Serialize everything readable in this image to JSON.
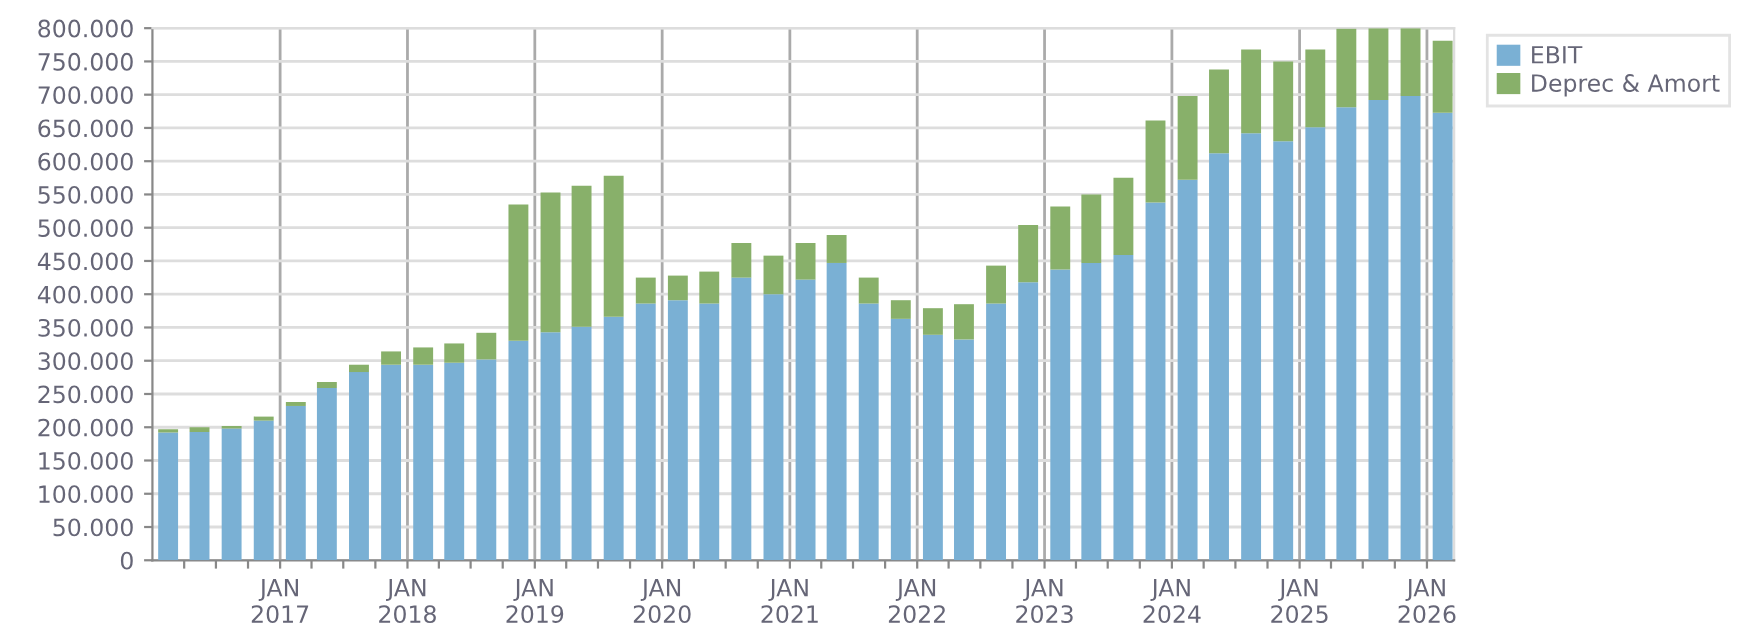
{
  "chart_data": {
    "type": "bar",
    "stacked": true,
    "x": [
      "2016-02-15",
      "2016-05-15",
      "2016-08-15",
      "2016-11-15",
      "2017-02-15",
      "2017-05-15",
      "2017-08-15",
      "2017-11-15",
      "2018-02-15",
      "2018-05-15",
      "2018-08-15",
      "2018-11-15",
      "2019-02-15",
      "2019-05-15",
      "2019-08-15",
      "2019-11-15",
      "2020-02-15",
      "2020-05-15",
      "2020-08-15",
      "2020-11-15",
      "2021-02-15",
      "2021-05-15",
      "2021-08-15",
      "2021-11-15",
      "2022-02-15",
      "2022-05-15",
      "2022-08-15",
      "2022-11-15",
      "2023-02-15",
      "2023-05-15",
      "2023-08-15",
      "2023-11-15",
      "2024-02-15",
      "2024-05-15",
      "2024-08-15",
      "2024-11-15",
      "2025-02-15",
      "2025-05-15",
      "2025-08-15",
      "2025-11-15",
      "2026-02-15"
    ],
    "series": [
      {
        "name": "EBIT",
        "color": "#7ab0d4",
        "values": [
          192000,
          193000,
          198000,
          210000,
          232000,
          259000,
          283000,
          294000,
          294000,
          297000,
          302000,
          330000,
          343000,
          351000,
          366000,
          386000,
          391000,
          386000,
          425000,
          400000,
          422000,
          447000,
          386000,
          363000,
          339000,
          332000,
          386000,
          418000,
          437000,
          447000,
          459000,
          538000,
          572000,
          612000,
          642000,
          630000,
          651000,
          681000,
          692000,
          698000,
          673000
        ]
      },
      {
        "name": "Deprec & Amort",
        "color": "#88b06a",
        "values": [
          5000,
          7000,
          4000,
          6000,
          6000,
          9000,
          11000,
          20000,
          26000,
          29000,
          40000,
          205000,
          210000,
          212000,
          212000,
          39000,
          37000,
          48000,
          52000,
          58000,
          55000,
          42000,
          39000,
          28000,
          40000,
          53000,
          57000,
          86000,
          95000,
          103000,
          116000,
          123000,
          126000,
          126000,
          126000,
          120000,
          117000,
          118000,
          108000,
          102000,
          108000
        ]
      }
    ],
    "xlim": [
      "2016-01-01",
      "2026-03-20"
    ],
    "xticks": [
      {
        "value": "2016-04-01",
        "label": null
      },
      {
        "value": "2016-07-01",
        "label": null
      },
      {
        "value": "2016-10-01",
        "label": null
      },
      {
        "value": "2017-01-01",
        "label": "JAN\n2017"
      },
      {
        "value": "2017-04-01",
        "label": null
      },
      {
        "value": "2017-07-01",
        "label": null
      },
      {
        "value": "2017-10-01",
        "label": null
      },
      {
        "value": "2018-01-01",
        "label": "JAN\n2018"
      },
      {
        "value": "2018-04-01",
        "label": null
      },
      {
        "value": "2018-07-01",
        "label": null
      },
      {
        "value": "2018-10-01",
        "label": null
      },
      {
        "value": "2019-01-01",
        "label": "JAN\n2019"
      },
      {
        "value": "2019-04-01",
        "label": null
      },
      {
        "value": "2019-07-01",
        "label": null
      },
      {
        "value": "2019-10-01",
        "label": null
      },
      {
        "value": "2020-01-01",
        "label": "JAN\n2020"
      },
      {
        "value": "2020-04-01",
        "label": null
      },
      {
        "value": "2020-07-01",
        "label": null
      },
      {
        "value": "2020-10-01",
        "label": null
      },
      {
        "value": "2021-01-01",
        "label": "JAN\n2021"
      },
      {
        "value": "2021-04-01",
        "label": null
      },
      {
        "value": "2021-07-01",
        "label": null
      },
      {
        "value": "2021-10-01",
        "label": null
      },
      {
        "value": "2022-01-01",
        "label": "JAN\n2022"
      },
      {
        "value": "2022-04-01",
        "label": null
      },
      {
        "value": "2022-07-01",
        "label": null
      },
      {
        "value": "2022-10-01",
        "label": null
      },
      {
        "value": "2023-01-01",
        "label": "JAN\n2023"
      },
      {
        "value": "2023-04-01",
        "label": null
      },
      {
        "value": "2023-07-01",
        "label": null
      },
      {
        "value": "2023-10-01",
        "label": null
      },
      {
        "value": "2024-01-01",
        "label": "JAN\n2024"
      },
      {
        "value": "2024-04-01",
        "label": null
      },
      {
        "value": "2024-07-01",
        "label": null
      },
      {
        "value": "2024-10-01",
        "label": null
      },
      {
        "value": "2025-01-01",
        "label": "JAN\n2025"
      },
      {
        "value": "2025-04-01",
        "label": null
      },
      {
        "value": "2025-07-01",
        "label": null
      },
      {
        "value": "2025-10-01",
        "label": null
      },
      {
        "value": "2026-01-01",
        "label": "JAN\n2026"
      }
    ],
    "ylim": [
      0,
      800000
    ],
    "yticks": [
      0,
      {
        "value": 50000,
        "label": "50.000"
      },
      {
        "value": 100000,
        "label": "100.000"
      },
      {
        "value": 150000,
        "label": "150.000"
      },
      {
        "value": 200000,
        "label": "200.000"
      },
      {
        "value": 250000,
        "label": "250.000"
      },
      {
        "value": 300000,
        "label": "300.000"
      },
      {
        "value": 350000,
        "label": "350.000"
      },
      {
        "value": 400000,
        "label": "400.000"
      },
      {
        "value": 450000,
        "label": "450.000"
      },
      {
        "value": 500000,
        "label": "500.000"
      },
      {
        "value": 550000,
        "label": "550.000"
      },
      {
        "value": 600000,
        "label": "600.000"
      },
      {
        "value": 650000,
        "label": "650.000"
      },
      {
        "value": 700000,
        "label": "700.000"
      },
      {
        "value": 750000,
        "label": "750.000"
      },
      {
        "value": 800000,
        "label": "800.000"
      }
    ],
    "grid": true,
    "legend": "top right"
  }
}
